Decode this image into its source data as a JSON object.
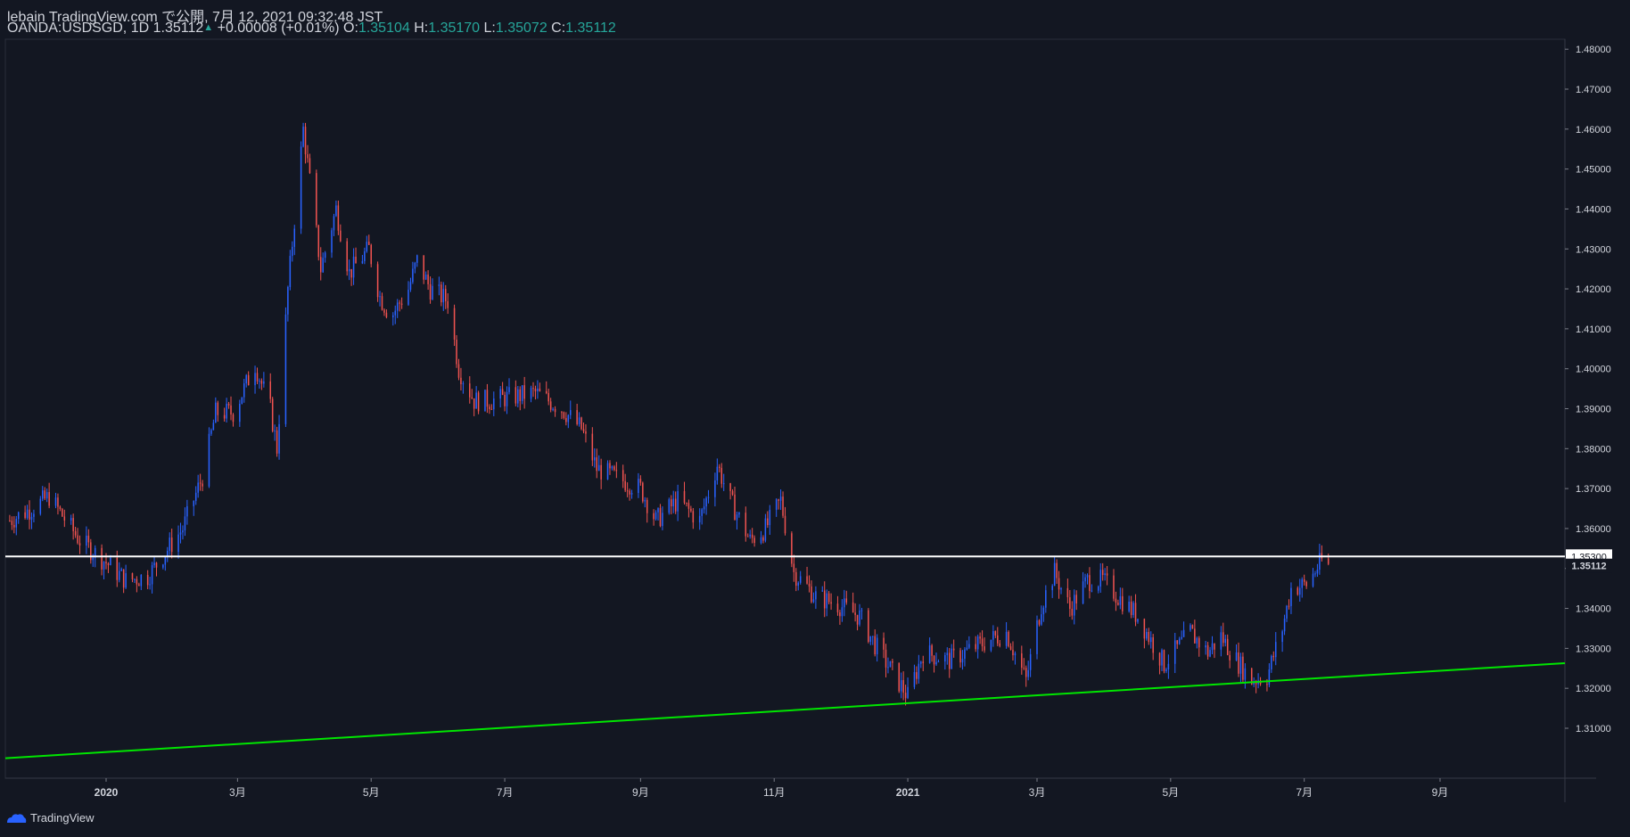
{
  "header": {
    "publish_line": "lebain TradingView.com で公開, 7月 12, 2021 09:32:48 JST",
    "symbol": "OANDA:USDSGD, 1D",
    "last": "1.35112",
    "change": "+0.00008 (+0.01%)",
    "o_label": "O:",
    "o_value": "1.35104",
    "h_label": "H:",
    "h_value": "1.35170",
    "l_label": "L:",
    "l_value": "1.35072",
    "c_label": "C:",
    "c_value": "1.35112"
  },
  "footer": {
    "brand": "TradingView"
  },
  "colors": {
    "background": "#131722",
    "up_candle": "#2962ff",
    "down_candle": "#ef5350",
    "support_line": "#00e600",
    "horizontal_line": "#ffffff",
    "axis_text": "#d1d4dc"
  },
  "chart_data": {
    "type": "candlestick",
    "ylim": [
      1.2975,
      1.4825
    ],
    "y_ticks": [
      "1.48000",
      "1.47000",
      "1.46000",
      "1.45000",
      "1.44000",
      "1.43000",
      "1.42000",
      "1.41000",
      "1.40000",
      "1.39000",
      "1.38000",
      "1.37000",
      "1.36000",
      "1.35000",
      "1.34000",
      "1.33000",
      "1.32000",
      "1.31000"
    ],
    "x_ticks": [
      {
        "label": "2020",
        "date": "2020-01-01",
        "bold": true
      },
      {
        "label": "3月",
        "date": "2020-03-01"
      },
      {
        "label": "5月",
        "date": "2020-05-01"
      },
      {
        "label": "7月",
        "date": "2020-07-01"
      },
      {
        "label": "9月",
        "date": "2020-09-01"
      },
      {
        "label": "11月",
        "date": "2020-11-01"
      },
      {
        "label": "2021",
        "date": "2021-01-01",
        "bold": true
      },
      {
        "label": "3月",
        "date": "2021-03-01"
      },
      {
        "label": "5月",
        "date": "2021-05-01"
      },
      {
        "label": "7月",
        "date": "2021-07-01"
      },
      {
        "label": "9月",
        "date": "2021-09-01"
      }
    ],
    "x_range": [
      "2019-11-16",
      "2021-10-28"
    ],
    "price_path": [
      [
        "2019-11-18",
        1.362
      ],
      [
        "2019-11-28",
        1.365
      ],
      [
        "2019-12-06",
        1.368
      ],
      [
        "2019-12-20",
        1.357
      ],
      [
        "2019-12-31",
        1.352
      ],
      [
        "2020-01-10",
        1.347
      ],
      [
        "2020-01-20",
        1.348
      ],
      [
        "2020-02-05",
        1.36
      ],
      [
        "2020-02-14",
        1.373
      ],
      [
        "2020-02-20",
        1.389
      ],
      [
        "2020-02-28",
        1.389
      ],
      [
        "2020-03-09",
        1.401
      ],
      [
        "2020-03-16",
        1.39
      ],
      [
        "2020-03-19",
        1.38
      ],
      [
        "2020-03-24",
        1.42
      ],
      [
        "2020-03-31",
        1.46
      ],
      [
        "2020-04-03",
        1.447
      ],
      [
        "2020-04-08",
        1.425
      ],
      [
        "2020-04-15",
        1.44
      ],
      [
        "2020-04-21",
        1.424
      ],
      [
        "2020-04-30",
        1.43
      ],
      [
        "2020-05-05",
        1.418
      ],
      [
        "2020-05-10",
        1.413
      ],
      [
        "2020-05-18",
        1.42
      ],
      [
        "2020-05-22",
        1.427
      ],
      [
        "2020-05-28",
        1.42
      ],
      [
        "2020-06-05",
        1.417
      ],
      [
        "2020-06-10",
        1.4
      ],
      [
        "2020-06-17",
        1.392
      ],
      [
        "2020-06-24",
        1.392
      ],
      [
        "2020-07-05",
        1.393
      ],
      [
        "2020-07-15",
        1.394
      ],
      [
        "2020-07-27",
        1.39
      ],
      [
        "2020-08-05",
        1.385
      ],
      [
        "2020-08-12",
        1.375
      ],
      [
        "2020-08-24",
        1.372
      ],
      [
        "2020-09-01",
        1.37
      ],
      [
        "2020-09-08",
        1.362
      ],
      [
        "2020-09-18",
        1.367
      ],
      [
        "2020-09-28",
        1.362
      ],
      [
        "2020-10-06",
        1.376
      ],
      [
        "2020-10-12",
        1.367
      ],
      [
        "2020-10-21",
        1.357
      ],
      [
        "2020-10-28",
        1.36
      ],
      [
        "2020-11-04",
        1.367
      ],
      [
        "2020-11-10",
        1.349
      ],
      [
        "2020-11-20",
        1.343
      ],
      [
        "2020-11-30",
        1.341
      ],
      [
        "2020-12-10",
        1.338
      ],
      [
        "2020-12-18",
        1.33
      ],
      [
        "2021-01-01",
        1.318
      ],
      [
        "2021-01-08",
        1.329
      ],
      [
        "2021-01-20",
        1.327
      ],
      [
        "2021-02-03",
        1.331
      ],
      [
        "2021-02-15",
        1.334
      ],
      [
        "2021-02-24",
        1.322
      ],
      [
        "2021-03-03",
        1.341
      ],
      [
        "2021-03-09",
        1.349
      ],
      [
        "2021-03-16",
        1.34
      ],
      [
        "2021-03-24",
        1.347
      ],
      [
        "2021-03-31",
        1.347
      ],
      [
        "2021-04-07",
        1.343
      ],
      [
        "2021-04-16",
        1.338
      ],
      [
        "2021-04-28",
        1.326
      ],
      [
        "2021-05-10",
        1.334
      ],
      [
        "2021-05-18",
        1.329
      ],
      [
        "2021-05-24",
        1.333
      ],
      [
        "2021-05-31",
        1.327
      ],
      [
        "2021-06-07",
        1.322
      ],
      [
        "2021-06-14",
        1.323
      ],
      [
        "2021-06-21",
        1.335
      ],
      [
        "2021-06-25",
        1.345
      ],
      [
        "2021-07-02",
        1.346
      ],
      [
        "2021-07-09",
        1.352
      ],
      [
        "2021-07-12",
        1.3511
      ]
    ],
    "support_line": {
      "from": [
        "2019-11-16",
        1.3025
      ],
      "to": [
        "2021-10-28",
        1.3263
      ]
    },
    "horizontal_line": {
      "value": 1.353,
      "label": "1.35300"
    },
    "last_price": {
      "value": 1.35112,
      "label": "1.35112"
    }
  }
}
